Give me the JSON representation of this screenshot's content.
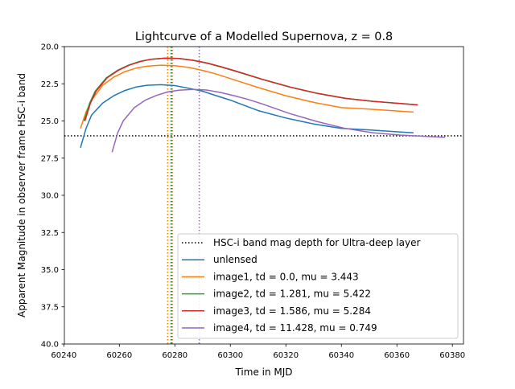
{
  "chart_data": {
    "type": "line",
    "title": "Lightcurve of a Modelled Supernova, z = 0.8",
    "xlabel": "Time in MJD",
    "ylabel": "Apparent Magnitude in observer frame HSC-i band",
    "xlim": [
      60240.2,
      60384.0
    ],
    "ylim": [
      40.0,
      20.0
    ],
    "y_inverted": true,
    "grid": false,
    "legend_position": "lower-right",
    "xticks": [
      60240,
      60260,
      60280,
      60300,
      60320,
      60340,
      60360,
      60380
    ],
    "xtick_labels": [
      "60240",
      "60260",
      "60280",
      "60300",
      "60320",
      "60340",
      "60360",
      "60380"
    ],
    "yticks": [
      20.0,
      22.5,
      25.0,
      27.5,
      30.0,
      32.5,
      35.0,
      37.5,
      40.0
    ],
    "ytick_labels": [
      "20.0",
      "22.5",
      "25.0",
      "27.5",
      "30.0",
      "32.5",
      "35.0",
      "37.5",
      "40.0"
    ],
    "depth_line": {
      "name": "HSC-i band mag depth for Ultra-deep layer",
      "y": 26.0,
      "color": "#000000"
    },
    "peak_markers": [
      {
        "series": "image1",
        "x": 60277.4,
        "color": "#ff7f0e"
      },
      {
        "series": "image2",
        "x": 60278.6,
        "color": "#2ca02c"
      },
      {
        "series": "image3",
        "x": 60279.0,
        "color": "#d62728"
      },
      {
        "series": "image4",
        "x": 60288.8,
        "color": "#9467bd"
      }
    ],
    "series": [
      {
        "name": "unlensed",
        "color": "#1f77b4",
        "x": [
          60246,
          60248,
          60250,
          60254,
          60258,
          60262,
          60266,
          60270,
          60275,
          60280,
          60285,
          60290,
          60295,
          60300,
          60310,
          60320,
          60330,
          60340,
          60350,
          60366
        ],
        "y": [
          26.8,
          25.5,
          24.6,
          23.8,
          23.3,
          22.95,
          22.72,
          22.6,
          22.56,
          22.62,
          22.8,
          23.0,
          23.3,
          23.6,
          24.3,
          24.8,
          25.2,
          25.5,
          25.6,
          25.8
        ]
      },
      {
        "name": "image1, td = 0.0, mu = 3.443",
        "color": "#ff7f0e",
        "x": [
          60246,
          60248,
          60250,
          60254,
          60258,
          60262,
          60266,
          60270,
          60275,
          60280,
          60285,
          60290,
          60295,
          60300,
          60310,
          60320,
          60330,
          60340,
          60350,
          60366
        ],
        "y": [
          25.5,
          24.4,
          23.6,
          22.6,
          22.05,
          21.68,
          21.45,
          21.32,
          21.25,
          21.28,
          21.4,
          21.6,
          21.85,
          22.15,
          22.75,
          23.3,
          23.75,
          24.1,
          24.2,
          24.4
        ]
      },
      {
        "name": "image2, td = 1.281, mu = 5.422",
        "color": "#2ca02c",
        "x": [
          60247.3,
          60249.3,
          60251.3,
          60255.3,
          60259.3,
          60263.3,
          60267.3,
          60271.3,
          60276.3,
          60281.3,
          60286.3,
          60291.3,
          60296.3,
          60301.3,
          60311.3,
          60321.3,
          60331.3,
          60341.3,
          60351.3,
          60367.3
        ],
        "y": [
          25.0,
          23.8,
          23.0,
          22.1,
          21.6,
          21.25,
          21.0,
          20.85,
          20.78,
          20.8,
          20.92,
          21.1,
          21.35,
          21.62,
          22.2,
          22.72,
          23.15,
          23.48,
          23.68,
          23.92
        ]
      },
      {
        "name": "image3, td = 1.586, mu = 5.284",
        "color": "#d62728",
        "x": [
          60247.6,
          60249.6,
          60251.6,
          60255.6,
          60259.6,
          60263.6,
          60267.6,
          60271.6,
          60276.6,
          60281.6,
          60286.6,
          60291.6,
          60296.6,
          60301.6,
          60311.6,
          60321.6,
          60331.6,
          60341.6,
          60351.6,
          60367.6
        ],
        "y": [
          25.0,
          23.8,
          23.0,
          22.1,
          21.6,
          21.25,
          21.0,
          20.85,
          20.78,
          20.8,
          20.92,
          21.1,
          21.35,
          21.62,
          22.2,
          22.72,
          23.15,
          23.48,
          23.68,
          23.92
        ]
      },
      {
        "name": "image4, td = 11.428, mu = 0.749",
        "color": "#9467bd",
        "x": [
          60257.4,
          60259.4,
          60261.4,
          60265.4,
          60269.4,
          60273.4,
          60277.4,
          60281.4,
          60286.4,
          60291.4,
          60296.4,
          60301.4,
          60306.4,
          60311.4,
          60321.4,
          60331.4,
          60341.4,
          60351.4,
          60361.4,
          60377.4
        ],
        "y": [
          27.1,
          25.8,
          25.0,
          24.1,
          23.6,
          23.28,
          23.05,
          22.93,
          22.88,
          22.92,
          23.08,
          23.3,
          23.55,
          23.85,
          24.5,
          25.05,
          25.5,
          25.8,
          25.95,
          26.1
        ]
      }
    ]
  }
}
